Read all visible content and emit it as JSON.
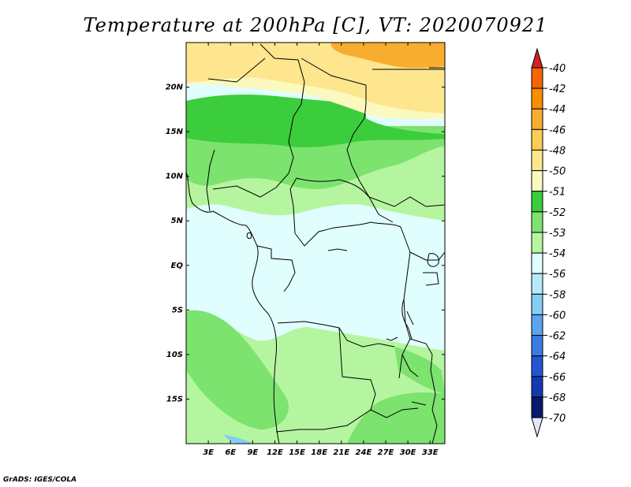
{
  "title": "Temperature at 200hPa [C], VT: 2020070921",
  "credit": "GrADS: IGES/COLA",
  "map": {
    "lat_range": [
      -20,
      25
    ],
    "lon_range": [
      0,
      35
    ],
    "lat_ticks": [
      {
        "lat": 20,
        "label": "20N"
      },
      {
        "lat": 15,
        "label": "15N"
      },
      {
        "lat": 10,
        "label": "10N"
      },
      {
        "lat": 5,
        "label": "5N"
      },
      {
        "lat": 0,
        "label": "EQ"
      },
      {
        "lat": -5,
        "label": "5S"
      },
      {
        "lat": -10,
        "label": "10S"
      },
      {
        "lat": -15,
        "label": "15S"
      }
    ],
    "lon_ticks": [
      {
        "lon": 3,
        "label": "3E"
      },
      {
        "lon": 6,
        "label": "6E"
      },
      {
        "lon": 9,
        "label": "9E"
      },
      {
        "lon": 12,
        "label": "12E"
      },
      {
        "lon": 15,
        "label": "15E"
      },
      {
        "lon": 18,
        "label": "18E"
      },
      {
        "lon": 21,
        "label": "21E"
      },
      {
        "lon": 24,
        "label": "24E"
      },
      {
        "lon": 27,
        "label": "27E"
      },
      {
        "lon": 30,
        "label": "30E"
      },
      {
        "lon": 33,
        "label": "33E"
      }
    ]
  },
  "colorbar": {
    "levels": [
      {
        "label": "-40",
        "color": "#f03c00"
      },
      {
        "label": "-42",
        "color": "#f56400"
      },
      {
        "label": "-44",
        "color": "#f88e00"
      },
      {
        "label": "-46",
        "color": "#f9ad2e"
      },
      {
        "label": "-48",
        "color": "#fccc55"
      },
      {
        "label": "-50",
        "color": "#fde68e"
      },
      {
        "label": "-51",
        "color": "#fcf9bf"
      },
      {
        "label": "-52",
        "color": "#3ccd3c"
      },
      {
        "label": "-53",
        "color": "#7ce36e"
      },
      {
        "label": "-54",
        "color": "#b5f5a0"
      },
      {
        "label": "-56",
        "color": "#e1fefe"
      },
      {
        "label": "-58",
        "color": "#b4ebfb"
      },
      {
        "label": "-60",
        "color": "#84cdf5"
      },
      {
        "label": "-62",
        "color": "#5aa5f0"
      },
      {
        "label": "-64",
        "color": "#3c7be4"
      },
      {
        "label": "-66",
        "color": "#2455d2"
      },
      {
        "label": "-68",
        "color": "#133bb0"
      },
      {
        "label": "-70",
        "color": "#081a6e"
      }
    ],
    "top_triangle_color": "#d2231e",
    "bottom_triangle_color": "#e6e6fa"
  },
  "fields": {
    "north_band_color": "#fde68e",
    "northeast_patch_color": "#f9ad2e",
    "sahel_band_color": "#3ccd3c",
    "light_green_color": "#7ce36e",
    "pale_green_color": "#b5f5a0",
    "cyan_color": "#e1fefe",
    "lake_blue_color": "#84cdf5"
  }
}
